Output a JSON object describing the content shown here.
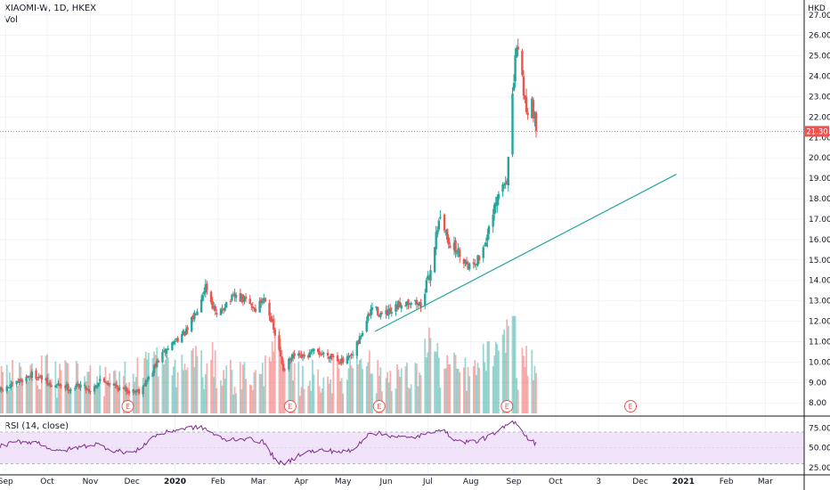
{
  "header": {
    "title": "XIAOMI-W, 1D, HKEX",
    "volume_label": "Vol",
    "rsi_label": "RSI (14, close)"
  },
  "colors": {
    "up": "#26a69a",
    "down": "#ef5350",
    "price_line": "#ef5350",
    "price_tag": "#ef5350",
    "trendline": "#26a69a",
    "rsi_line": "#7e2f8e",
    "rsi_band": "#f1e3f9",
    "grid": "#f0f3fa",
    "axis_text": "#131722"
  },
  "chart_data": [
    {
      "type": "candlestick",
      "currency": "HKD",
      "current_price": 21.3,
      "current_price_label": "21.30",
      "ylim": [
        7.4,
        27.6
      ],
      "y_ticks": [
        {
          "value": 8,
          "label": "8.00"
        },
        {
          "value": 9,
          "label": "9.00"
        },
        {
          "value": 10,
          "label": "10.00"
        },
        {
          "value": 11,
          "label": "11.00"
        },
        {
          "value": 12,
          "label": "12.00"
        },
        {
          "value": 13,
          "label": "13.00"
        },
        {
          "value": 14,
          "label": "14.00"
        },
        {
          "value": 15,
          "label": "15.00"
        },
        {
          "value": 16,
          "label": "16.00"
        },
        {
          "value": 17,
          "label": "17.00"
        },
        {
          "value": 18,
          "label": "18.00"
        },
        {
          "value": 19,
          "label": "19.00"
        },
        {
          "value": 20,
          "label": "20.00"
        },
        {
          "value": 21,
          "label": "21.00"
        },
        {
          "value": 22,
          "label": "22.00"
        },
        {
          "value": 23,
          "label": "23.00"
        },
        {
          "value": 24,
          "label": "24.00"
        },
        {
          "value": 25,
          "label": "25.00"
        },
        {
          "value": 26,
          "label": "26.00"
        },
        {
          "value": 27,
          "label": "27.00"
        }
      ],
      "x_ticks": [
        {
          "date": "2019-09-01",
          "label": "Sep",
          "bold": false
        },
        {
          "date": "2019-10-01",
          "label": "Oct",
          "bold": false
        },
        {
          "date": "2019-11-01",
          "label": "Nov",
          "bold": false
        },
        {
          "date": "2019-12-01",
          "label": "Dec",
          "bold": false
        },
        {
          "date": "2020-01-01",
          "label": "2020",
          "bold": true
        },
        {
          "date": "2020-02-01",
          "label": "Feb",
          "bold": false
        },
        {
          "date": "2020-03-01",
          "label": "Mar",
          "bold": false
        },
        {
          "date": "2020-04-01",
          "label": "Apr",
          "bold": false
        },
        {
          "date": "2020-05-01",
          "label": "May",
          "bold": false
        },
        {
          "date": "2020-06-01",
          "label": "Jun",
          "bold": false
        },
        {
          "date": "2020-07-01",
          "label": "Jul",
          "bold": false
        },
        {
          "date": "2020-08-01",
          "label": "Aug",
          "bold": false
        },
        {
          "date": "2020-09-01",
          "label": "Sep",
          "bold": false
        },
        {
          "date": "2020-10-01",
          "label": "Oct",
          "bold": false
        },
        {
          "date": "2020-11-01",
          "label": "3",
          "bold": false
        },
        {
          "date": "2020-12-01",
          "label": "Dec",
          "bold": false
        },
        {
          "date": "2021-01-01",
          "label": "2021",
          "bold": true
        },
        {
          "date": "2021-02-01",
          "label": "Feb",
          "bold": false
        },
        {
          "date": "2021-03-01",
          "label": "Mar",
          "bold": false
        }
      ],
      "close_path": [
        [
          "2019-08-28",
          8.6
        ],
        [
          "2019-09-05",
          8.8
        ],
        [
          "2019-09-12",
          9.1
        ],
        [
          "2019-09-20",
          9.4
        ],
        [
          "2019-09-27",
          9.2
        ],
        [
          "2019-10-04",
          8.8
        ],
        [
          "2019-10-11",
          8.9
        ],
        [
          "2019-10-18",
          8.7
        ],
        [
          "2019-10-25",
          8.9
        ],
        [
          "2019-11-01",
          8.6
        ],
        [
          "2019-11-08",
          9.1
        ],
        [
          "2019-11-15",
          9.0
        ],
        [
          "2019-11-22",
          8.7
        ],
        [
          "2019-11-29",
          8.6
        ],
        [
          "2019-12-06",
          8.6
        ],
        [
          "2019-12-13",
          9.2
        ],
        [
          "2019-12-20",
          10.1
        ],
        [
          "2019-12-27",
          10.7
        ],
        [
          "2020-01-03",
          11.2
        ],
        [
          "2020-01-10",
          11.5
        ],
        [
          "2020-01-17",
          12.7
        ],
        [
          "2020-01-23",
          13.8
        ],
        [
          "2020-01-31",
          12.2
        ],
        [
          "2020-02-07",
          12.9
        ],
        [
          "2020-02-14",
          13.2
        ],
        [
          "2020-02-21",
          13.0
        ],
        [
          "2020-02-28",
          12.6
        ],
        [
          "2020-03-06",
          13.2
        ],
        [
          "2020-03-13",
          11.3
        ],
        [
          "2020-03-19",
          9.7
        ],
        [
          "2020-03-27",
          10.3
        ],
        [
          "2020-04-03",
          10.2
        ],
        [
          "2020-04-10",
          10.5
        ],
        [
          "2020-04-17",
          10.4
        ],
        [
          "2020-04-24",
          10.3
        ],
        [
          "2020-05-01",
          10.0
        ],
        [
          "2020-05-08",
          10.3
        ],
        [
          "2020-05-15",
          11.5
        ],
        [
          "2020-05-22",
          12.7
        ],
        [
          "2020-05-29",
          12.3
        ],
        [
          "2020-06-05",
          12.4
        ],
        [
          "2020-06-12",
          12.9
        ],
        [
          "2020-06-19",
          13.0
        ],
        [
          "2020-06-26",
          12.8
        ],
        [
          "2020-07-03",
          14.5
        ],
        [
          "2020-07-09",
          17.1
        ],
        [
          "2020-07-17",
          15.8
        ],
        [
          "2020-07-24",
          15.3
        ],
        [
          "2020-07-31",
          14.7
        ],
        [
          "2020-08-07",
          15.1
        ],
        [
          "2020-08-14",
          16.4
        ],
        [
          "2020-08-21",
          18.2
        ],
        [
          "2020-08-27",
          19.0
        ],
        [
          "2020-08-31",
          22.8
        ],
        [
          "2020-09-03",
          25.6
        ],
        [
          "2020-09-07",
          23.9
        ],
        [
          "2020-09-10",
          22.3
        ],
        [
          "2020-09-14",
          22.8
        ],
        [
          "2020-09-17",
          21.3
        ]
      ],
      "trendline": {
        "from": [
          "2020-05-24",
          11.5
        ],
        "to": [
          "2020-12-27",
          19.2
        ]
      },
      "earnings_markers": [
        {
          "date": "2019-11-28",
          "label": "E"
        },
        {
          "date": "2020-03-24",
          "label": "E"
        },
        {
          "date": "2020-05-27",
          "label": "E"
        },
        {
          "date": "2020-08-27",
          "label": "E"
        },
        {
          "date": "2020-11-24",
          "label": "E"
        }
      ],
      "volume": {
        "max_bar_date": "2020-09-01"
      }
    },
    {
      "type": "line",
      "name": "RSI (14, close)",
      "ylim": [
        18,
        88
      ],
      "y_ticks": [
        {
          "value": 25,
          "label": "25.00"
        },
        {
          "value": 50,
          "label": "50.00"
        },
        {
          "value": 75,
          "label": "75.00"
        }
      ],
      "band": [
        30,
        70
      ],
      "values_path": [
        [
          "2019-08-28",
          52
        ],
        [
          "2019-09-10",
          58
        ],
        [
          "2019-09-24",
          57
        ],
        [
          "2019-10-08",
          45
        ],
        [
          "2019-10-22",
          50
        ],
        [
          "2019-11-05",
          55
        ],
        [
          "2019-11-19",
          46
        ],
        [
          "2019-12-03",
          44
        ],
        [
          "2019-12-17",
          65
        ],
        [
          "2020-01-02",
          73
        ],
        [
          "2020-01-15",
          76
        ],
        [
          "2020-01-22",
          75
        ],
        [
          "2020-02-05",
          60
        ],
        [
          "2020-02-19",
          62
        ],
        [
          "2020-03-04",
          58
        ],
        [
          "2020-03-13",
          36
        ],
        [
          "2020-03-19",
          28
        ],
        [
          "2020-04-02",
          44
        ],
        [
          "2020-04-16",
          47
        ],
        [
          "2020-04-30",
          45
        ],
        [
          "2020-05-08",
          46
        ],
        [
          "2020-05-20",
          70
        ],
        [
          "2020-06-03",
          66
        ],
        [
          "2020-06-17",
          62
        ],
        [
          "2020-07-02",
          68
        ],
        [
          "2020-07-09",
          75
        ],
        [
          "2020-07-23",
          58
        ],
        [
          "2020-08-05",
          58
        ],
        [
          "2020-08-19",
          68
        ],
        [
          "2020-08-28",
          80
        ],
        [
          "2020-09-02",
          84
        ],
        [
          "2020-09-10",
          64
        ],
        [
          "2020-09-17",
          55
        ]
      ]
    }
  ]
}
